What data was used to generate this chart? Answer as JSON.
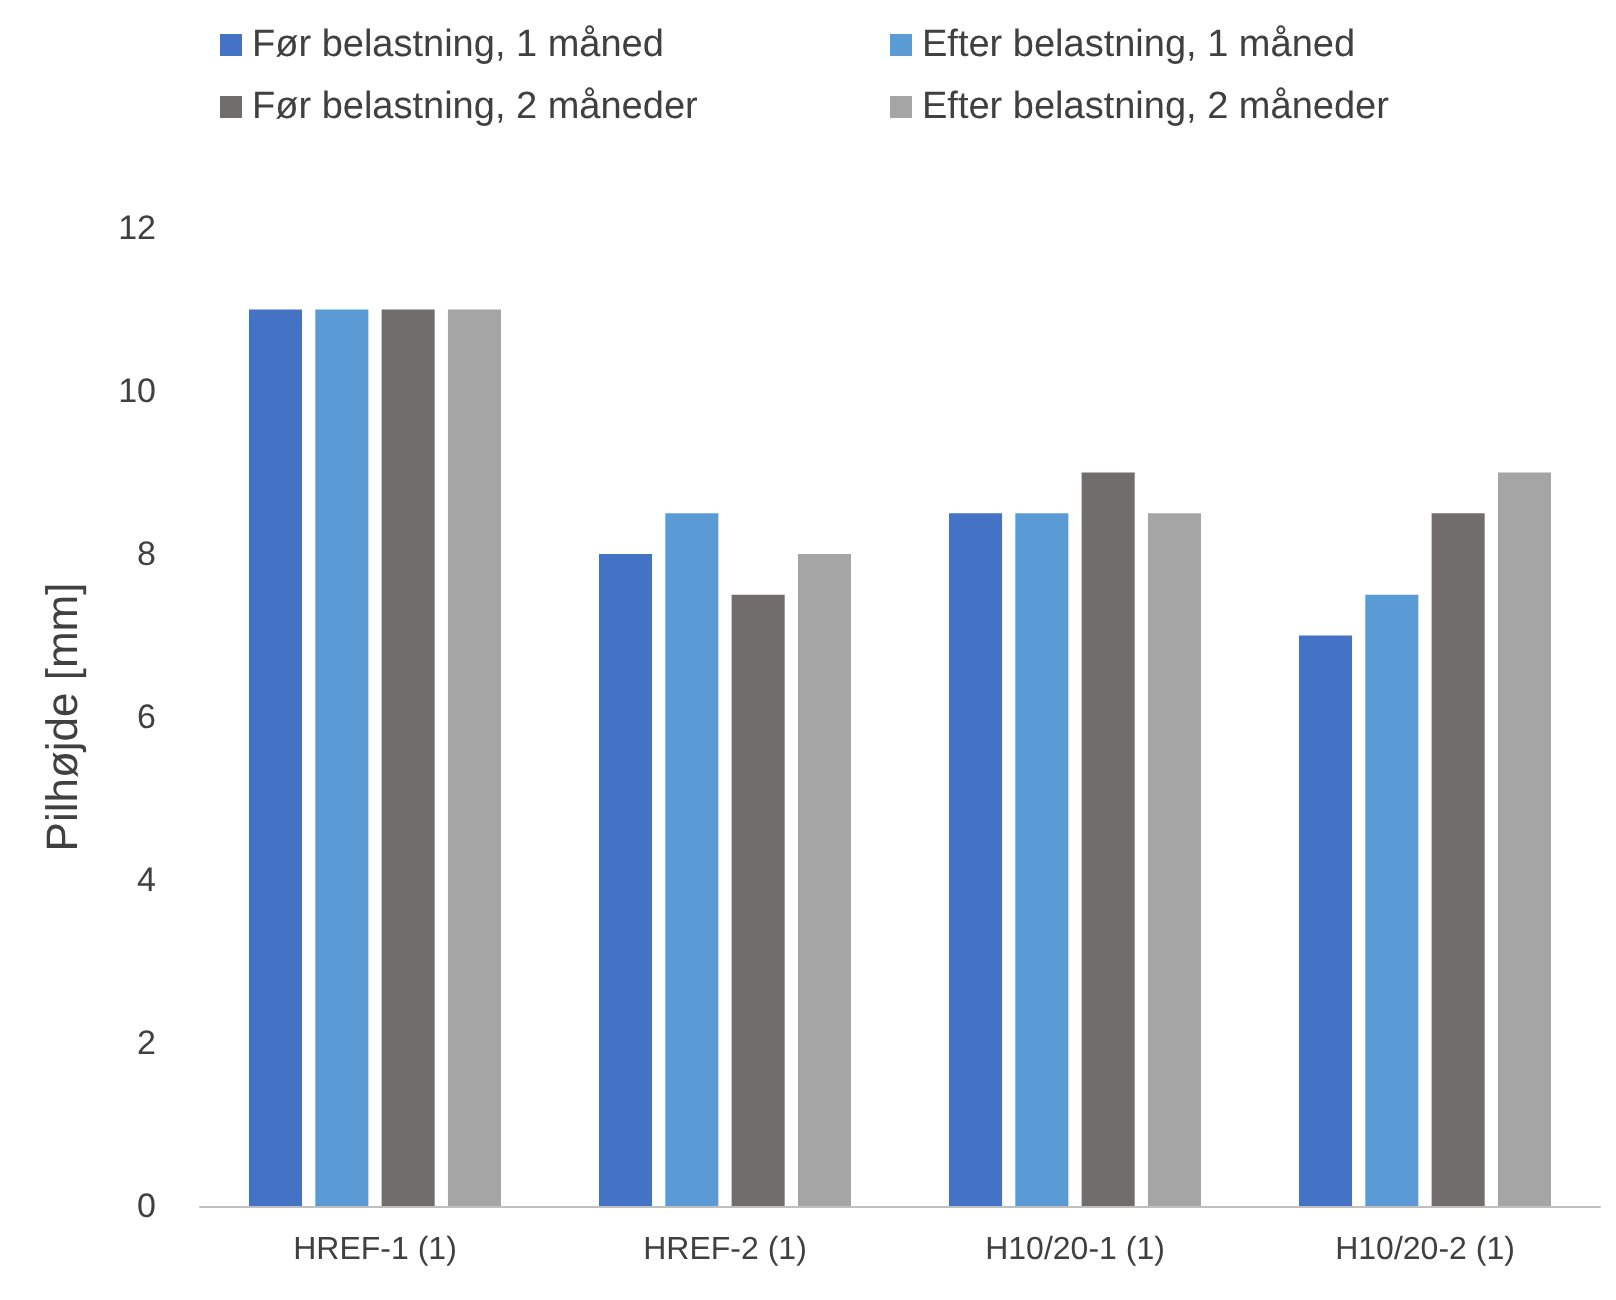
{
  "chart_data": {
    "type": "bar",
    "ylabel": "Pilhøjde [mm]",
    "categories": [
      "HREF-1 (1)",
      "HREF-2 (1)",
      "H10/20-1 (1)",
      "H10/20-2 (1)"
    ],
    "series": [
      {
        "name": "Før belastning, 1 måned",
        "color": "#4472c4",
        "values": [
          11,
          8,
          8.5,
          7
        ]
      },
      {
        "name": "Efter belastning, 1 måned",
        "color": "#5b9bd5",
        "values": [
          11,
          8.5,
          8.5,
          7.5
        ]
      },
      {
        "name": "Før belastning, 2 måneder",
        "color": "#716d6d",
        "values": [
          11,
          7.5,
          9,
          8.5
        ]
      },
      {
        "name": "Efter belastning, 2 måneder",
        "color": "#a5a5a5",
        "values": [
          11,
          8,
          8.5,
          9
        ]
      }
    ],
    "ylim": [
      0,
      12
    ],
    "yticks": [
      0,
      2,
      4,
      6,
      8,
      10,
      12
    ],
    "grid": false,
    "legend": "top"
  }
}
